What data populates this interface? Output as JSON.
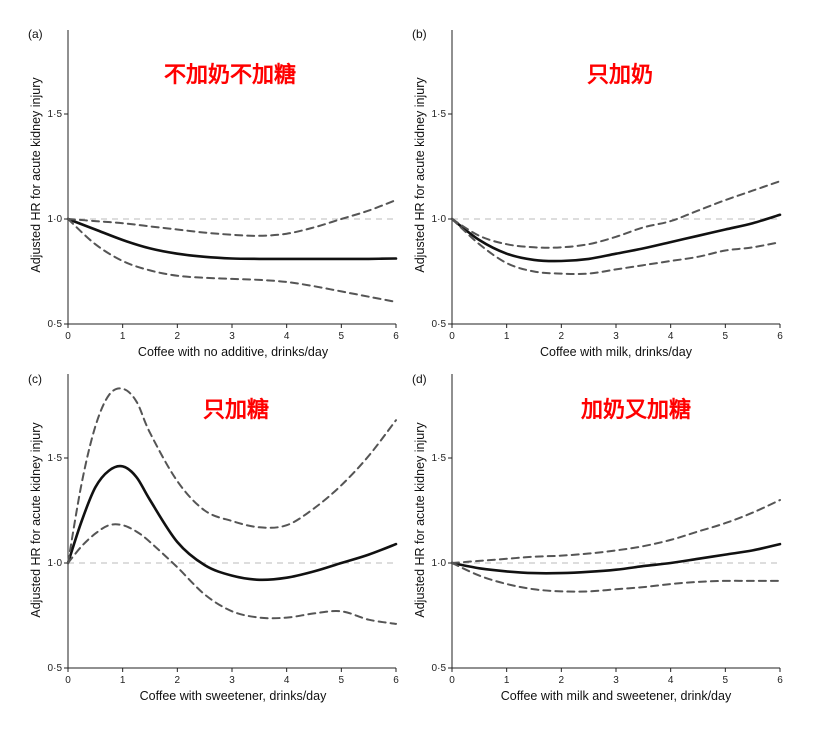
{
  "chart_data": [
    {
      "type": "line",
      "panel_label": "(a)",
      "annotation": "不加奶不加糖",
      "xlabel": "Coffee with no additive, drinks/day",
      "ylabel": "Adjusted HR for acute kidney injury",
      "xlim": [
        0,
        6
      ],
      "ylim": [
        0.5,
        1.9
      ],
      "x_ticks": [
        "0",
        "1",
        "2",
        "3",
        "4",
        "5",
        "6"
      ],
      "y_ticks": [
        "0·5",
        "1·0",
        "1·5"
      ],
      "reference_line": 1.0,
      "x": [
        0,
        0.5,
        1,
        1.5,
        2,
        2.5,
        3,
        3.5,
        4,
        4.5,
        5,
        5.5,
        6
      ],
      "series": [
        {
          "style": "solid",
          "values": [
            1.0,
            0.95,
            0.9,
            0.86,
            0.835,
            0.82,
            0.812,
            0.81,
            0.81,
            0.81,
            0.81,
            0.81,
            0.812
          ]
        },
        {
          "style": "dashed",
          "values": [
            1.0,
            0.99,
            0.98,
            0.965,
            0.95,
            0.935,
            0.925,
            0.92,
            0.93,
            0.96,
            1.0,
            1.04,
            1.09
          ]
        },
        {
          "style": "dashed",
          "values": [
            1.0,
            0.88,
            0.8,
            0.755,
            0.73,
            0.72,
            0.715,
            0.71,
            0.7,
            0.68,
            0.655,
            0.63,
            0.605
          ]
        }
      ]
    },
    {
      "type": "line",
      "panel_label": "(b)",
      "annotation": "只加奶",
      "xlabel": "Coffee with milk, drinks/day",
      "ylabel": "Adjusted HR for acute kidney injury",
      "xlim": [
        0,
        6
      ],
      "ylim": [
        0.5,
        1.9
      ],
      "x_ticks": [
        "0",
        "1",
        "2",
        "3",
        "4",
        "5",
        "6"
      ],
      "y_ticks": [
        "0·5",
        "1·0",
        "1·5"
      ],
      "reference_line": 1.0,
      "x": [
        0,
        0.5,
        1,
        1.5,
        2,
        2.5,
        3,
        3.5,
        4,
        4.5,
        5,
        5.5,
        6
      ],
      "series": [
        {
          "style": "solid",
          "values": [
            1.0,
            0.9,
            0.835,
            0.805,
            0.8,
            0.81,
            0.835,
            0.86,
            0.89,
            0.92,
            0.95,
            0.98,
            1.02
          ]
        },
        {
          "style": "dashed",
          "values": [
            1.0,
            0.92,
            0.88,
            0.865,
            0.865,
            0.88,
            0.915,
            0.96,
            0.99,
            1.04,
            1.09,
            1.135,
            1.18
          ]
        },
        {
          "style": "dashed",
          "values": [
            1.0,
            0.88,
            0.79,
            0.75,
            0.74,
            0.74,
            0.76,
            0.78,
            0.8,
            0.82,
            0.85,
            0.865,
            0.89
          ]
        }
      ]
    },
    {
      "type": "line",
      "panel_label": "(c)",
      "annotation": "只加糖",
      "xlabel": "Coffee with sweetener, drinks/day",
      "ylabel": "Adjusted HR for acute kidney injury",
      "xlim": [
        0,
        6
      ],
      "ylim": [
        0.5,
        1.9
      ],
      "x_ticks": [
        "0",
        "1",
        "2",
        "3",
        "4",
        "5",
        "6"
      ],
      "y_ticks": [
        "0·5",
        "1·0",
        "1·5"
      ],
      "reference_line": 1.0,
      "x": [
        0,
        0.25,
        0.5,
        0.75,
        1,
        1.25,
        1.5,
        2,
        2.5,
        3,
        3.5,
        4,
        4.5,
        5,
        5.5,
        6
      ],
      "series": [
        {
          "style": "solid",
          "values": [
            1.0,
            1.2,
            1.36,
            1.44,
            1.46,
            1.41,
            1.3,
            1.1,
            0.99,
            0.94,
            0.92,
            0.93,
            0.96,
            1.0,
            1.04,
            1.09
          ]
        },
        {
          "style": "dashed",
          "values": [
            1.0,
            1.38,
            1.65,
            1.8,
            1.83,
            1.77,
            1.62,
            1.39,
            1.25,
            1.2,
            1.17,
            1.18,
            1.26,
            1.37,
            1.51,
            1.68
          ]
        },
        {
          "style": "dashed",
          "values": [
            1.0,
            1.08,
            1.14,
            1.18,
            1.18,
            1.15,
            1.1,
            0.98,
            0.85,
            0.77,
            0.74,
            0.74,
            0.76,
            0.77,
            0.73,
            0.71
          ]
        }
      ]
    },
    {
      "type": "line",
      "panel_label": "(d)",
      "annotation": "加奶又加糖",
      "xlabel": "Coffee with milk and sweetener, drink/day",
      "ylabel": "Adjusted HR for acute kidney injury",
      "xlim": [
        0,
        6
      ],
      "ylim": [
        0.5,
        1.9
      ],
      "x_ticks": [
        "0",
        "1",
        "2",
        "3",
        "4",
        "5",
        "6"
      ],
      "y_ticks": [
        "0·5",
        "1·0",
        "1·5"
      ],
      "reference_line": 1.0,
      "x": [
        0,
        0.5,
        1,
        1.5,
        2,
        2.5,
        3,
        3.5,
        4,
        4.5,
        5,
        5.5,
        6
      ],
      "series": [
        {
          "style": "solid",
          "values": [
            1.0,
            0.975,
            0.96,
            0.952,
            0.952,
            0.958,
            0.968,
            0.985,
            1.0,
            1.02,
            1.04,
            1.06,
            1.09
          ]
        },
        {
          "style": "dashed",
          "values": [
            1.0,
            1.01,
            1.02,
            1.03,
            1.035,
            1.045,
            1.06,
            1.08,
            1.11,
            1.15,
            1.19,
            1.24,
            1.3
          ]
        },
        {
          "style": "dashed",
          "values": [
            1.0,
            0.94,
            0.9,
            0.875,
            0.865,
            0.865,
            0.875,
            0.885,
            0.9,
            0.91,
            0.915,
            0.915,
            0.915
          ]
        }
      ]
    }
  ]
}
